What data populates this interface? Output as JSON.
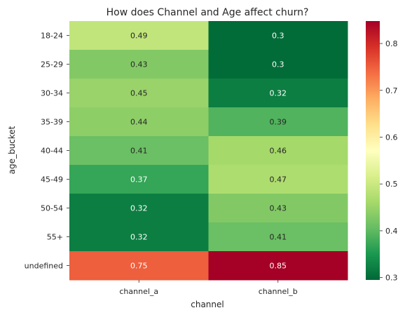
{
  "chart_data": {
    "type": "heatmap",
    "title": "How does Channel and Age affect churn?",
    "xlabel": "channel",
    "ylabel": "age_bucket",
    "columns": [
      "channel_a",
      "channel_b"
    ],
    "rows": [
      "18-24",
      "25-29",
      "30-34",
      "35-39",
      "40-44",
      "45-49",
      "50-54",
      "55+",
      "undefined"
    ],
    "values": [
      [
        0.49,
        0.3
      ],
      [
        0.43,
        0.3
      ],
      [
        0.45,
        0.32
      ],
      [
        0.44,
        0.39
      ],
      [
        0.41,
        0.46
      ],
      [
        0.37,
        0.47
      ],
      [
        0.32,
        0.43
      ],
      [
        0.32,
        0.41
      ],
      [
        0.75,
        0.85
      ]
    ],
    "value_labels": [
      [
        "0.49",
        "0.3"
      ],
      [
        "0.43",
        "0.3"
      ],
      [
        "0.45",
        "0.32"
      ],
      [
        "0.44",
        "0.39"
      ],
      [
        "0.41",
        "0.46"
      ],
      [
        "0.37",
        "0.47"
      ],
      [
        "0.32",
        "0.43"
      ],
      [
        "0.32",
        "0.41"
      ],
      [
        "0.75",
        "0.85"
      ]
    ],
    "colormap": "RdYlGn_r",
    "color_range": [
      0.295,
      0.848
    ],
    "colorbar": {
      "ticks": [
        0.3,
        0.4,
        0.5,
        0.6,
        0.7,
        0.8
      ],
      "tick_labels": [
        "0.3",
        "0.4",
        "0.5",
        "0.6",
        "0.7",
        "0.8"
      ]
    },
    "grid": false
  }
}
